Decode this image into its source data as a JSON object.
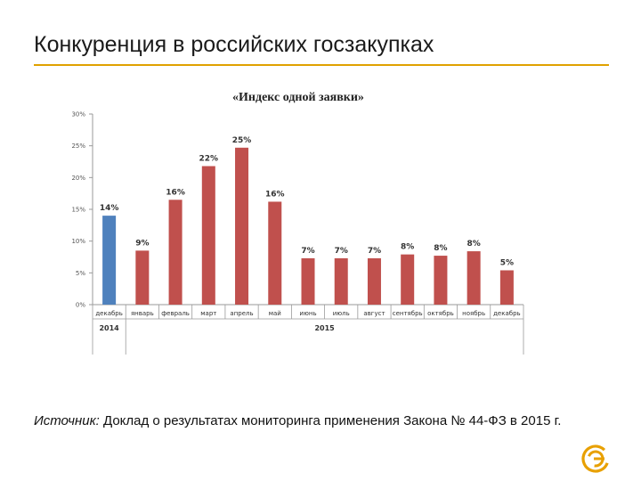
{
  "slide": {
    "title": "Конкуренция в российских госзакупках",
    "source_label": "Источник:",
    "source_text": " Доклад о результатах мониторинга применения Закона № 44-ФЗ в 2015 г."
  },
  "colors": {
    "accent_rule": "#e0a100",
    "bar_2014": "#4f81bd",
    "bar_2015": "#c0504d",
    "logo": "#e8a000"
  },
  "chart_data": {
    "type": "bar",
    "title": "«Индекс одной заявки»",
    "ylim": [
      0,
      30
    ],
    "yticks": [
      "0%",
      "5%",
      "10%",
      "15%",
      "20%",
      "25%",
      "30%"
    ],
    "grid": false,
    "categories": [
      "декабрь",
      "январь",
      "февраль",
      "март",
      "апрель",
      "май",
      "июнь",
      "июль",
      "август",
      "сентябрь",
      "октябрь",
      "ноябрь",
      "декабрь"
    ],
    "values": [
      14,
      9,
      16,
      22,
      25,
      16,
      7,
      7,
      7,
      8,
      8,
      8,
      5
    ],
    "value_labels": [
      "14%",
      "9%",
      "16%",
      "22%",
      "25%",
      "16%",
      "7%",
      "7%",
      "7%",
      "8%",
      "8%",
      "8%",
      "5%"
    ],
    "bar_values_estimated": [
      14,
      8.5,
      16.5,
      21.8,
      24.7,
      16.2,
      7.3,
      7.3,
      7.3,
      7.9,
      7.7,
      8.4,
      5.4
    ],
    "year_groups": [
      {
        "label": "2014",
        "from": 0,
        "to": 0
      },
      {
        "label": "2015",
        "from": 1,
        "to": 12
      }
    ]
  }
}
